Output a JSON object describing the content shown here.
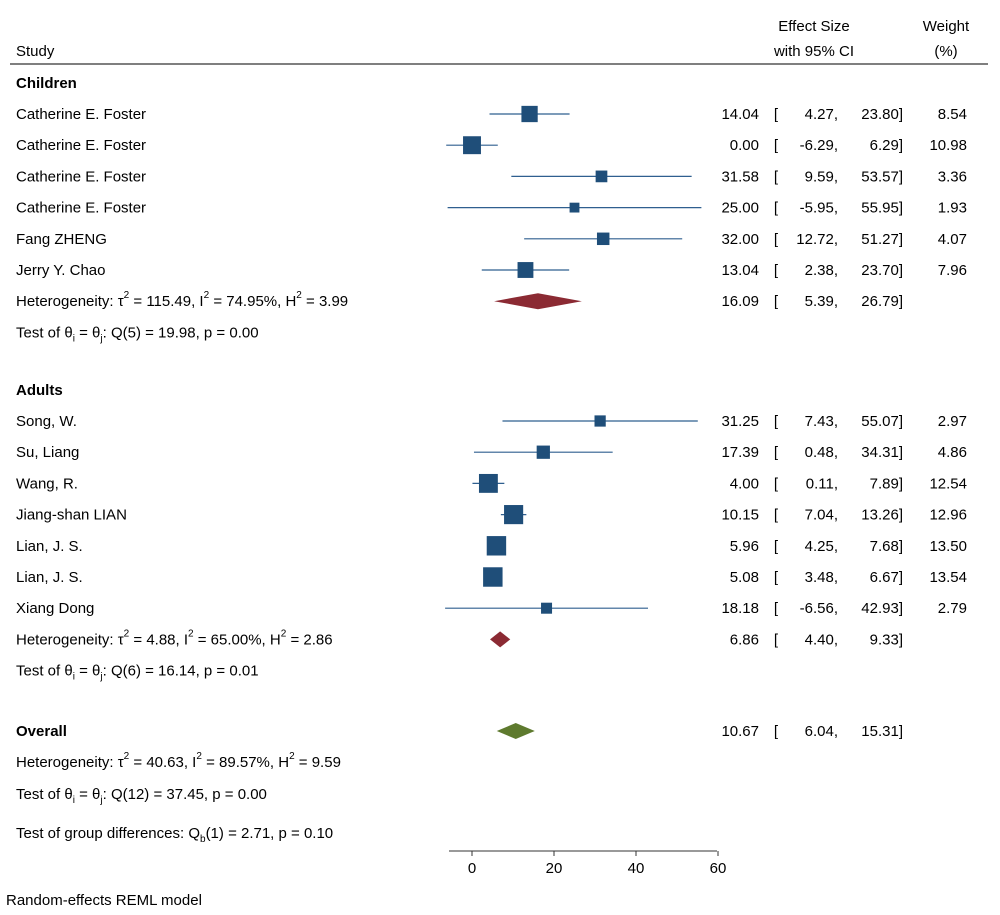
{
  "chart_data": {
    "type": "forest",
    "header": {
      "study": "Study",
      "effect_line1": "Effect Size",
      "effect_line2": "with 95% CI",
      "weight_line1": "Weight",
      "weight_line2": "(%)"
    },
    "x_ticks": [
      0,
      20,
      40,
      60
    ],
    "xlim": [
      -6,
      60
    ],
    "groups": [
      {
        "name": "Children",
        "studies": [
          {
            "label": "Catherine E. Foster",
            "es": 14.04,
            "lo": 4.27,
            "hi": 23.8,
            "es_text": "14.04",
            "lo_text": "4.27",
            "hi_text": "23.80",
            "weight": 8.54,
            "weight_text": "8.54"
          },
          {
            "label": "Catherine E. Foster",
            "es": 0.0,
            "lo": -6.29,
            "hi": 6.29,
            "es_text": "0.00",
            "lo_text": "-6.29",
            "hi_text": "6.29",
            "weight": 10.98,
            "weight_text": "10.98"
          },
          {
            "label": "Catherine E. Foster",
            "es": 31.58,
            "lo": 9.59,
            "hi": 53.57,
            "es_text": "31.58",
            "lo_text": "9.59",
            "hi_text": "53.57",
            "weight": 3.36,
            "weight_text": "3.36"
          },
          {
            "label": "Catherine E. Foster",
            "es": 25.0,
            "lo": -5.95,
            "hi": 55.95,
            "es_text": "25.00",
            "lo_text": "-5.95",
            "hi_text": "55.95",
            "weight": 1.93,
            "weight_text": "1.93"
          },
          {
            "label": "Fang ZHENG",
            "es": 32.0,
            "lo": 12.72,
            "hi": 51.27,
            "es_text": "32.00",
            "lo_text": "12.72",
            "hi_text": "51.27",
            "weight": 4.07,
            "weight_text": "4.07"
          },
          {
            "label": "Jerry Y. Chao",
            "es": 13.04,
            "lo": 2.38,
            "hi": 23.7,
            "es_text": "13.04",
            "lo_text": "2.38",
            "hi_text": "23.70",
            "weight": 7.96,
            "weight_text": "7.96"
          }
        ],
        "summary": {
          "es": 16.09,
          "lo": 5.39,
          "hi": 26.79,
          "es_text": "16.09",
          "lo_text": "5.39",
          "hi_text": "26.79",
          "color": "#8b2a33"
        },
        "heterogeneity": {
          "prefix": "Heterogeneity: τ",
          "tau2_eq": " = 115.49, I",
          "i2_eq": " = 74.95%, H",
          "h2_eq": " = 3.99"
        },
        "test": {
          "prefix": "Test of θ",
          "i_sub": "i",
          "eq": " = θ",
          "j_sub": "j",
          "rest": ": Q(5) = 19.98, p = 0.00"
        }
      },
      {
        "name": "Adults",
        "studies": [
          {
            "label": "Song, W.",
            "es": 31.25,
            "lo": 7.43,
            "hi": 55.07,
            "es_text": "31.25",
            "lo_text": "7.43",
            "hi_text": "55.07",
            "weight": 2.97,
            "weight_text": "2.97"
          },
          {
            "label": "Su, Liang",
            "es": 17.39,
            "lo": 0.48,
            "hi": 34.31,
            "es_text": "17.39",
            "lo_text": "0.48",
            "hi_text": "34.31",
            "weight": 4.86,
            "weight_text": "4.86"
          },
          {
            "label": "Wang, R.",
            "es": 4.0,
            "lo": 0.11,
            "hi": 7.89,
            "es_text": "4.00",
            "lo_text": "0.11",
            "hi_text": "7.89",
            "weight": 12.54,
            "weight_text": "12.54"
          },
          {
            "label": "Jiang-shan LIAN",
            "es": 10.15,
            "lo": 7.04,
            "hi": 13.26,
            "es_text": "10.15",
            "lo_text": "7.04",
            "hi_text": "13.26",
            "weight": 12.96,
            "weight_text": "12.96"
          },
          {
            "label": "Lian, J. S.",
            "es": 5.96,
            "lo": 4.25,
            "hi": 7.68,
            "es_text": "5.96",
            "lo_text": "4.25",
            "hi_text": "7.68",
            "weight": 13.5,
            "weight_text": "13.50"
          },
          {
            "label": "Lian, J. S.",
            "es": 5.08,
            "lo": 3.48,
            "hi": 6.67,
            "es_text": "5.08",
            "lo_text": "3.48",
            "hi_text": "6.67",
            "weight": 13.54,
            "weight_text": "13.54"
          },
          {
            "label": "Xiang Dong",
            "es": 18.18,
            "lo": -6.56,
            "hi": 42.93,
            "es_text": "18.18",
            "lo_text": "-6.56",
            "hi_text": "42.93",
            "weight": 2.79,
            "weight_text": "2.79"
          }
        ],
        "summary": {
          "es": 6.86,
          "lo": 4.4,
          "hi": 9.33,
          "es_text": "6.86",
          "lo_text": "4.40",
          "hi_text": "9.33",
          "color": "#8b2a33"
        },
        "heterogeneity": {
          "prefix": "Heterogeneity: τ",
          "tau2_eq": " = 4.88, I",
          "i2_eq": " = 65.00%, H",
          "h2_eq": " = 2.86"
        },
        "test": {
          "prefix": "Test of θ",
          "i_sub": "i",
          "eq": " = θ",
          "j_sub": "j",
          "rest": ": Q(6) = 16.14, p = 0.01"
        }
      }
    ],
    "overall": {
      "name": "Overall",
      "es": 10.67,
      "lo": 6.04,
      "hi": 15.31,
      "es_text": "10.67",
      "lo_text": "6.04",
      "hi_text": "15.31",
      "color": "#5e7a2e",
      "heterogeneity": {
        "prefix": "Heterogeneity: τ",
        "tau2_eq": " = 40.63, I",
        "i2_eq": " = 89.57%, H",
        "h2_eq": " = 9.59"
      },
      "test": {
        "prefix": "Test of θ",
        "i_sub": "i",
        "eq": " = θ",
        "j_sub": "j",
        "rest": ": Q(12) = 37.45, p = 0.00"
      }
    },
    "group_test": {
      "prefix": "Test of group differences: Q",
      "sub": "b",
      "rest": "(1) = 2.71, p = 0.10"
    },
    "footer": "Random-effects REML model",
    "superscript": "2",
    "bracket": "[",
    "bracket_close": "]",
    "marker_color": "#1f4e79",
    "ci_color": "#2f5f8f"
  }
}
